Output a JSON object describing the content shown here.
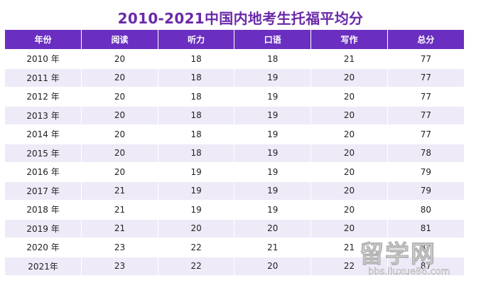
{
  "title": "2010-2021中国内地考生托福平均分",
  "columns": [
    "年份",
    "阅读",
    "听力",
    "口语",
    "写作",
    "总分"
  ],
  "rows": [
    [
      "2010 年",
      "20",
      "18",
      "18",
      "21",
      "77"
    ],
    [
      "2011 年",
      "20",
      "18",
      "19",
      "20",
      "77"
    ],
    [
      "2012 年",
      "20",
      "18",
      "19",
      "20",
      "77"
    ],
    [
      "2013 年",
      "20",
      "18",
      "19",
      "20",
      "77"
    ],
    [
      "2014 年",
      "20",
      "18",
      "19",
      "20",
      "77"
    ],
    [
      "2015 年",
      "20",
      "18",
      "19",
      "20",
      "78"
    ],
    [
      "2016 年",
      "20",
      "19",
      "19",
      "20",
      "79"
    ],
    [
      "2017 年",
      "21",
      "19",
      "19",
      "20",
      "79"
    ],
    [
      "2018 年",
      "21",
      "19",
      "19",
      "20",
      "80"
    ],
    [
      "2019 年",
      "21",
      "20",
      "20",
      "20",
      "81"
    ],
    [
      "2020 年",
      "23",
      "22",
      "21",
      "21",
      "87"
    ],
    [
      "2021年",
      "23",
      "22",
      "20",
      "22",
      "87"
    ]
  ],
  "watermark": {
    "text": "留学网",
    "url": "bbs.liuxue86.com"
  },
  "colors": {
    "title": "#6a2aa8",
    "header_bg": "#6a2fc0",
    "row_stripe": "#efeaf8"
  }
}
